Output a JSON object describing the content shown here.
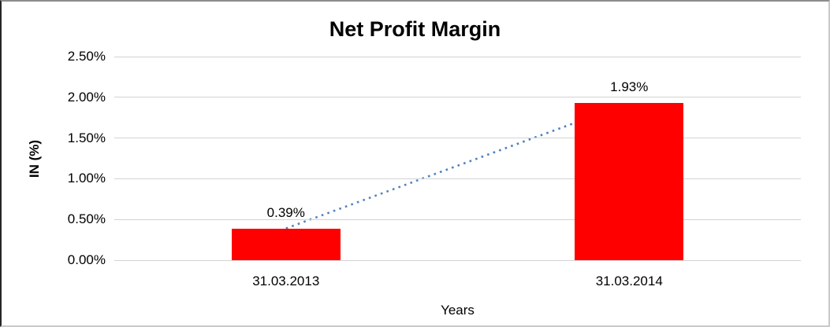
{
  "chart_data": {
    "type": "bar",
    "title": "Net Profit Margin",
    "xlabel": "Years",
    "ylabel": "IN (%)",
    "categories": [
      "31.03.2013",
      "31.03.2014"
    ],
    "values": [
      0.39,
      1.93
    ],
    "data_labels": [
      "0.39%",
      "1.93%"
    ],
    "ylim": [
      0,
      2.5
    ],
    "yticks": [
      "0.00%",
      "0.50%",
      "1.00%",
      "1.50%",
      "2.00%",
      "2.50%"
    ],
    "grid": true,
    "legend": "none",
    "bar_color": "#ff0000",
    "gridline_color": "#d3d3d3",
    "trendline": {
      "type": "linear",
      "style": "dotted",
      "color": "#4f81bd"
    }
  }
}
